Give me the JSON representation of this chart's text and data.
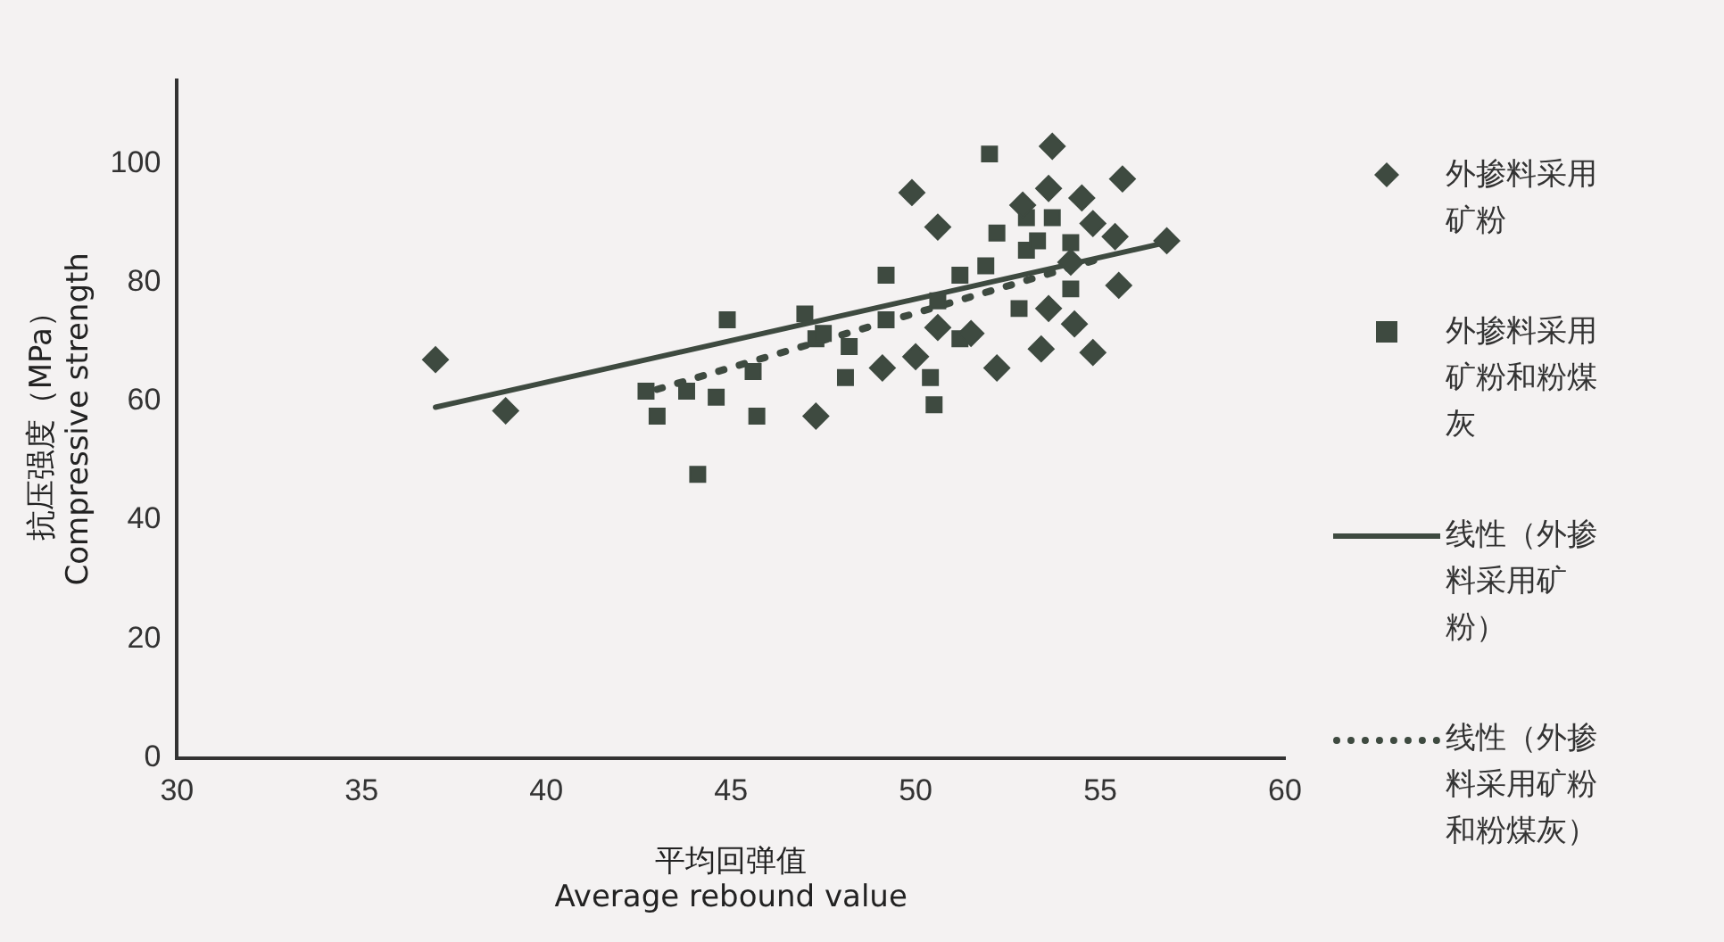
{
  "chart_data": {
    "type": "scatter",
    "xlabel": "平均回弹值\nAverage rebound value",
    "ylabel": "抗压强度（MPa）\nCompressive strength",
    "xlim": [
      30,
      60
    ],
    "xticks": [
      30,
      35,
      40,
      45,
      50,
      55,
      60
    ],
    "ylim": [
      0,
      114
    ],
    "yticks": [
      0,
      20,
      40,
      60,
      80,
      100
    ],
    "grid": false,
    "legend": "right",
    "series": [
      {
        "name": "外掺料采用矿粉",
        "marker": "diamond",
        "color": "#3e4a40",
        "x": [
          37,
          38.9,
          53.7,
          49.9,
          53.6,
          55.6,
          54.5,
          50.6,
          54.8,
          55.4,
          56.8,
          55.5,
          53.6,
          54.3,
          54.8,
          53.4,
          52.2,
          51.5,
          50,
          49.1,
          47.3,
          50.6,
          54.2,
          52.9
        ],
        "values": [
          67,
          58.4,
          102.9,
          95.1,
          95.8,
          97.4,
          94.2,
          89.3,
          89.9,
          87.7,
          87,
          79.5,
          75.6,
          73,
          68.2,
          68.8,
          65.6,
          71.4,
          67.5,
          65.6,
          57.5,
          72.4,
          83.4,
          93
        ]
      },
      {
        "name": "外掺料采用矿粉和粉煤灰",
        "marker": "square",
        "color": "#3e4a40",
        "x": [
          44.9,
          42.7,
          43,
          43.8,
          44.6,
          44.1,
          45.6,
          45.7,
          47,
          47.3,
          52,
          49.2,
          52.2,
          51.2,
          53,
          53.7,
          53,
          51.9,
          52.8,
          54.2,
          54.2,
          50.6,
          49.2,
          48.2,
          47.5,
          50.4,
          50.5,
          48.1,
          51.2,
          53.3
        ],
        "values": [
          73.7,
          61.7,
          57.5,
          61.7,
          60.7,
          47.7,
          65,
          57.5,
          74.7,
          70.5,
          101.6,
          81.2,
          88.3,
          81.2,
          90.9,
          90.9,
          85.4,
          82.8,
          75.6,
          86.7,
          78.9,
          76.9,
          73.7,
          69.2,
          71.4,
          64,
          59.4,
          64,
          70.5,
          87
        ]
      },
      {
        "name": "线性（外掺料采用矿粉）",
        "type": "line",
        "line_style": "solid",
        "color": "#3e4a40",
        "x": [
          37,
          57
        ],
        "values": [
          59,
          87
        ]
      },
      {
        "name": "线性（外掺料采用矿粉和粉煤灰）",
        "type": "line",
        "line_style": "dotted",
        "color": "#3e4a40",
        "x": [
          43,
          55
        ],
        "values": [
          62,
          84
        ]
      }
    ]
  }
}
